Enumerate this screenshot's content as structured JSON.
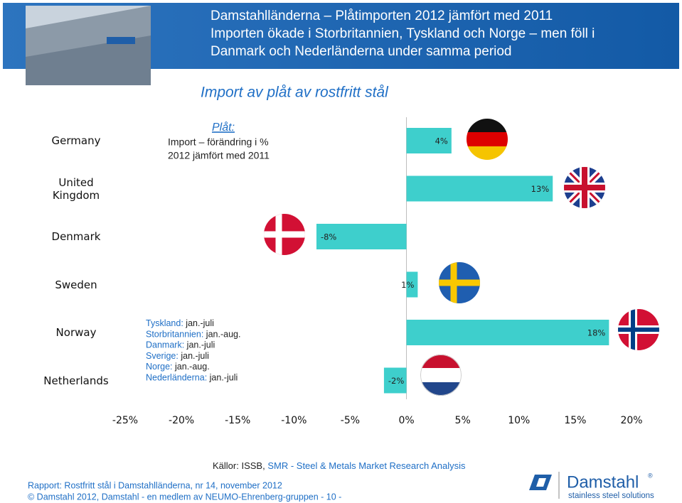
{
  "header": {
    "title_lines": [
      "Damstahlländerna – Plåtimporten 2012 jämfört med 2011",
      "Importen ökade i Storbritannien, Tyskland och Norge – men föll i",
      "Danmark och Nederländerna under samma period"
    ]
  },
  "chart_data": {
    "type": "bar",
    "orientation": "horizontal",
    "title": "Import av plåt av rostfritt stål",
    "categories": [
      "Germany",
      "United Kingdom",
      "Denmark",
      "Sweden",
      "Norway",
      "Netherlands"
    ],
    "values": [
      4,
      13,
      -8,
      1,
      18,
      -2
    ],
    "value_labels": [
      "4%",
      "13%",
      "-8%",
      "1%",
      "18%",
      "-2%"
    ],
    "color": "#3ecfcc",
    "xlim": [
      -25,
      20
    ],
    "xticks": [
      {
        "value": -25,
        "label": "-25%"
      },
      {
        "value": -20,
        "label": "-20%"
      },
      {
        "value": -15,
        "label": "-15%"
      },
      {
        "value": -10,
        "label": "-10%"
      },
      {
        "value": -5,
        "label": "-5%"
      },
      {
        "value": 0,
        "label": "0%"
      },
      {
        "value": 5,
        "label": "5%"
      },
      {
        "value": 10,
        "label": "10%"
      },
      {
        "value": 15,
        "label": "15%"
      },
      {
        "value": 20,
        "label": "20%"
      }
    ],
    "annotation": {
      "heading": "Plåt:",
      "lines": [
        "Import – förändring i %",
        "2012 jämfört med 2011"
      ]
    },
    "notes": [
      {
        "country": "Tyskland:",
        "period": "jan.-juli"
      },
      {
        "country": "Storbritannien:",
        "period": "jan.-aug."
      },
      {
        "country": "Danmark:",
        "period": "jan.-juli"
      },
      {
        "country": "Sverige:",
        "period": "jan.-juli"
      },
      {
        "country": "Norge:",
        "period": "jan.-aug."
      },
      {
        "country": "Nederländerna:",
        "period": "jan.-juli"
      }
    ]
  },
  "footer": {
    "sources_prefix": "Källor: ISSB,",
    "sources_highlight": "SMR - Steel & Metals Market Research Analysis",
    "report": "Rapport: Rostfritt stål i Damstahlländerna, nr 14, november 2012",
    "copyright": "© Damstahl 2012, Damstahl - en medlem av NEUMO-Ehrenberg-gruppen - 10 -",
    "brand": "Damstahl",
    "registered": "®",
    "tagline": "stainless steel solutions"
  }
}
